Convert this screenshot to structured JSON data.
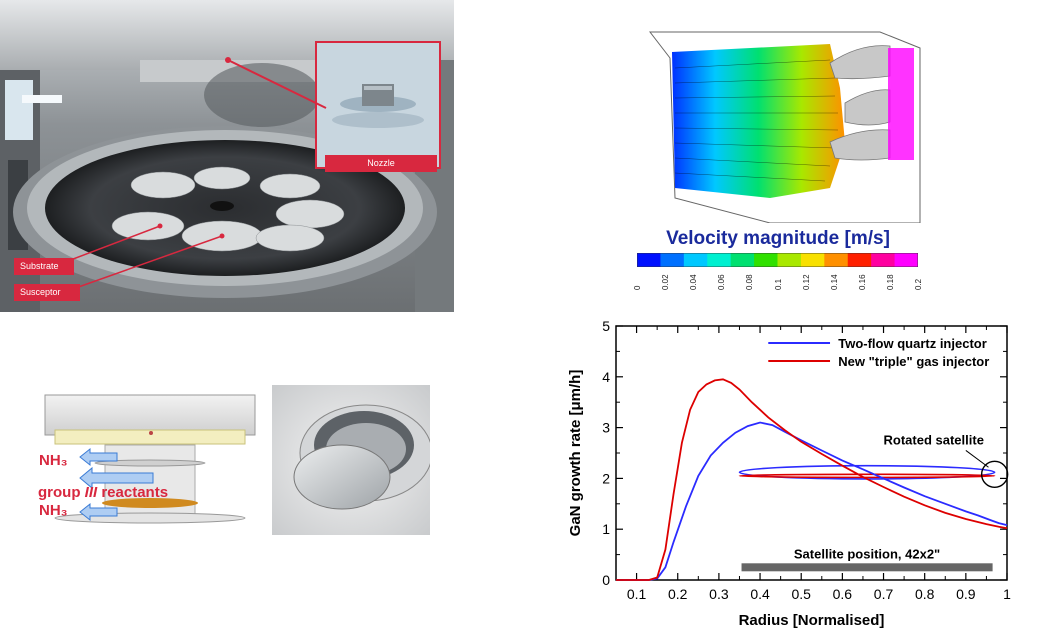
{
  "reactor_panel": {
    "labels": {
      "nozzle": "Nozzle",
      "substrate": "Substrate",
      "susceptor": "Susceptor"
    }
  },
  "cfd_panel": {
    "title": "Velocity magnitude [m/s]",
    "colorbar_ticks": [
      "0",
      "0.02",
      "0.04",
      "0.06",
      "0.08",
      "0.1",
      "0.12",
      "0.14",
      "0.16",
      "0.18",
      "0.2"
    ],
    "colorbar_colors": [
      "#0010ff",
      "#0070ff",
      "#00c8ff",
      "#00f0d0",
      "#00e070",
      "#30e000",
      "#a8e800",
      "#f8e000",
      "#ff9000",
      "#ff2000",
      "#ff00a0",
      "#ff00ff"
    ]
  },
  "injector_panel": {
    "nh3_top": "NH₃",
    "group_label_prefix": "group ",
    "group_label_roman": "III",
    "group_label_suffix": " reactants",
    "nh3_bottom": "NH₃"
  },
  "chart_data": {
    "type": "line",
    "xlabel": "Radius [Normalised]",
    "ylabel": "GaN growth rate [μm/h]",
    "xlim": [
      0.05,
      1.0
    ],
    "ylim": [
      0,
      5
    ],
    "xticks": [
      "0.1",
      "0.2",
      "0.3",
      "0.4",
      "0.5",
      "0.6",
      "0.7",
      "0.8",
      "0.9",
      "1"
    ],
    "yticks": [
      "0",
      "1",
      "2",
      "3",
      "4",
      "5"
    ],
    "legend_position": "top-right",
    "series": [
      {
        "name": "Two-flow quartz injector",
        "color": "#2b2bff",
        "x": [
          0.05,
          0.13,
          0.15,
          0.17,
          0.19,
          0.22,
          0.25,
          0.28,
          0.31,
          0.34,
          0.37,
          0.4,
          0.43,
          0.46,
          0.5,
          0.55,
          0.6,
          0.65,
          0.7,
          0.75,
          0.8,
          0.85,
          0.9,
          0.93,
          0.96,
          0.98,
          1.0
        ],
        "y": [
          0,
          0,
          0.03,
          0.25,
          0.75,
          1.45,
          2.05,
          2.45,
          2.7,
          2.9,
          3.03,
          3.1,
          3.05,
          2.92,
          2.75,
          2.55,
          2.35,
          2.18,
          2.0,
          1.82,
          1.65,
          1.5,
          1.35,
          1.27,
          1.18,
          1.12,
          1.08
        ]
      },
      {
        "name": "New \"triple\" gas injector",
        "color": "#dd0000",
        "x": [
          0.05,
          0.13,
          0.15,
          0.17,
          0.19,
          0.21,
          0.23,
          0.25,
          0.27,
          0.29,
          0.31,
          0.33,
          0.35,
          0.38,
          0.42,
          0.46,
          0.5,
          0.55,
          0.6,
          0.65,
          0.7,
          0.75,
          0.8,
          0.85,
          0.9,
          0.95,
          0.98,
          1.0
        ],
        "y": [
          0,
          0,
          0.05,
          0.6,
          1.7,
          2.7,
          3.35,
          3.7,
          3.85,
          3.93,
          3.95,
          3.88,
          3.75,
          3.5,
          3.2,
          2.95,
          2.72,
          2.48,
          2.25,
          2.03,
          1.83,
          1.64,
          1.47,
          1.32,
          1.2,
          1.1,
          1.05,
          1.02
        ]
      }
    ],
    "annotations": {
      "rotated_satellite": "Rotated satellite",
      "satellite_position": "Satellite position, 42x2\"",
      "satellite_band": {
        "x_start": 0.355,
        "x_end": 0.965,
        "y": 0.25
      },
      "blue_ellipse": {
        "x_center": 0.66,
        "y_center": 2.12,
        "x_halfwidth": 0.31,
        "y_halfwidth": 0.13
      },
      "red_ellipse": {
        "x_center": 0.66,
        "y_center": 2.05,
        "x_halfwidth": 0.31,
        "y_halfwidth": 0.03
      },
      "circle_marker": {
        "x": 0.97,
        "y": 2.08
      }
    }
  }
}
